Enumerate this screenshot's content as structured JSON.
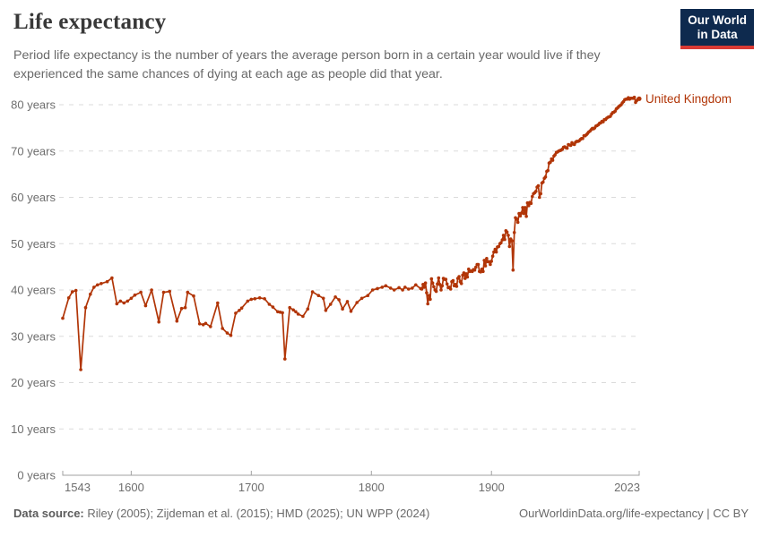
{
  "header": {
    "title": "Life expectancy",
    "subtitle": "Period life expectancy is the number of years the average person born in a certain year would live if they experienced the same chances of dying at each age as people did that year."
  },
  "logo": {
    "line1": "Our World",
    "line2": "in Data",
    "bg_color": "#0E2A4E",
    "bar_color": "#D93A34"
  },
  "chart_data": {
    "type": "line",
    "title": "Life expectancy",
    "xlabel": "",
    "ylabel": "years",
    "xlim": [
      1543,
      2023
    ],
    "ylim": [
      0,
      80
    ],
    "x_ticks": [
      1543,
      1600,
      1700,
      1800,
      1900,
      2023
    ],
    "y_ticks": [
      0,
      10,
      20,
      30,
      40,
      50,
      60,
      70,
      80
    ],
    "y_tick_suffix": " years",
    "grid": "horizontal-dashed",
    "legend_position": "end-of-line",
    "series": [
      {
        "name": "United Kingdom",
        "color": "#B13507",
        "points": [
          [
            1543,
            33.9
          ],
          [
            1548,
            38.3
          ],
          [
            1551,
            39.6
          ],
          [
            1554,
            39.9
          ],
          [
            1558,
            22.8
          ],
          [
            1562,
            36.2
          ],
          [
            1566,
            39.1
          ],
          [
            1569,
            40.6
          ],
          [
            1572,
            41.1
          ],
          [
            1575,
            41.4
          ],
          [
            1580,
            41.8
          ],
          [
            1584,
            42.6
          ],
          [
            1588,
            37.0
          ],
          [
            1591,
            37.6
          ],
          [
            1594,
            37.2
          ],
          [
            1597,
            37.6
          ],
          [
            1600,
            38.2
          ],
          [
            1603,
            38.9
          ],
          [
            1608,
            39.5
          ],
          [
            1612,
            36.6
          ],
          [
            1617,
            40.0
          ],
          [
            1623,
            33.1
          ],
          [
            1627,
            39.5
          ],
          [
            1632,
            39.7
          ],
          [
            1638,
            33.3
          ],
          [
            1642,
            36.0
          ],
          [
            1645,
            36.2
          ],
          [
            1647,
            39.5
          ],
          [
            1652,
            38.7
          ],
          [
            1657,
            32.7
          ],
          [
            1660,
            32.5
          ],
          [
            1662,
            32.8
          ],
          [
            1666,
            32.1
          ],
          [
            1672,
            37.2
          ],
          [
            1676,
            31.7
          ],
          [
            1680,
            30.7
          ],
          [
            1683,
            30.2
          ],
          [
            1687,
            35.0
          ],
          [
            1690,
            35.6
          ],
          [
            1692,
            36.1
          ],
          [
            1697,
            37.6
          ],
          [
            1700,
            38.0
          ],
          [
            1703,
            38.1
          ],
          [
            1707,
            38.3
          ],
          [
            1711,
            38.1
          ],
          [
            1715,
            36.9
          ],
          [
            1718,
            36.3
          ],
          [
            1722,
            35.3
          ],
          [
            1724,
            35.2
          ],
          [
            1726,
            35.1
          ],
          [
            1728,
            25.1
          ],
          [
            1732,
            36.2
          ],
          [
            1735,
            35.7
          ],
          [
            1737,
            35.3
          ],
          [
            1739,
            34.8
          ],
          [
            1743,
            34.3
          ],
          [
            1747,
            35.9
          ],
          [
            1751,
            39.6
          ],
          [
            1756,
            38.8
          ],
          [
            1760,
            38.2
          ],
          [
            1762,
            35.6
          ],
          [
            1766,
            36.9
          ],
          [
            1770,
            38.5
          ],
          [
            1773,
            37.9
          ],
          [
            1776,
            35.9
          ],
          [
            1780,
            37.5
          ],
          [
            1783,
            35.4
          ],
          [
            1788,
            37.3
          ],
          [
            1792,
            38.2
          ],
          [
            1797,
            38.8
          ],
          [
            1801,
            40.0
          ],
          [
            1805,
            40.3
          ],
          [
            1809,
            40.6
          ],
          [
            1812,
            40.9
          ],
          [
            1816,
            40.4
          ],
          [
            1819,
            40.0
          ],
          [
            1823,
            40.5
          ],
          [
            1826,
            40.0
          ],
          [
            1828,
            40.6
          ],
          [
            1831,
            40.2
          ],
          [
            1834,
            40.4
          ],
          [
            1837,
            41.1
          ],
          [
            1841,
            40.3
          ],
          [
            1842,
            40.2
          ],
          [
            1843,
            41.2
          ],
          [
            1844,
            40.6
          ],
          [
            1845,
            41.5
          ],
          [
            1846,
            39.4
          ],
          [
            1847,
            37.0
          ],
          [
            1848,
            38.8
          ],
          [
            1849,
            38.0
          ],
          [
            1850,
            42.4
          ],
          [
            1851,
            41.5
          ],
          [
            1852,
            40.7
          ],
          [
            1853,
            40.0
          ],
          [
            1854,
            39.7
          ],
          [
            1855,
            41.3
          ],
          [
            1856,
            42.6
          ],
          [
            1857,
            41.2
          ],
          [
            1858,
            40.0
          ],
          [
            1859,
            40.9
          ],
          [
            1860,
            42.5
          ],
          [
            1861,
            42.3
          ],
          [
            1862,
            42.3
          ],
          [
            1863,
            41.3
          ],
          [
            1864,
            40.5
          ],
          [
            1865,
            40.6
          ],
          [
            1866,
            40.2
          ],
          [
            1867,
            41.8
          ],
          [
            1868,
            42.0
          ],
          [
            1869,
            40.9
          ],
          [
            1870,
            41.2
          ],
          [
            1871,
            40.8
          ],
          [
            1872,
            42.5
          ],
          [
            1873,
            42.9
          ],
          [
            1874,
            41.8
          ],
          [
            1875,
            41.4
          ],
          [
            1876,
            43.2
          ],
          [
            1877,
            43.7
          ],
          [
            1878,
            42.5
          ],
          [
            1879,
            43.5
          ],
          [
            1880,
            42.8
          ],
          [
            1881,
            44.5
          ],
          [
            1882,
            44.0
          ],
          [
            1883,
            44.1
          ],
          [
            1884,
            44.0
          ],
          [
            1885,
            44.4
          ],
          [
            1886,
            44.3
          ],
          [
            1887,
            44.9
          ],
          [
            1888,
            45.5
          ],
          [
            1889,
            45.5
          ],
          [
            1890,
            44.0
          ],
          [
            1891,
            43.9
          ],
          [
            1892,
            44.5
          ],
          [
            1893,
            44.0
          ],
          [
            1894,
            46.4
          ],
          [
            1895,
            45.2
          ],
          [
            1896,
            46.8
          ],
          [
            1897,
            46.1
          ],
          [
            1898,
            46.1
          ],
          [
            1899,
            45.5
          ],
          [
            1900,
            46.2
          ],
          [
            1901,
            47.3
          ],
          [
            1902,
            48.2
          ],
          [
            1903,
            48.8
          ],
          [
            1904,
            48.2
          ],
          [
            1905,
            49.3
          ],
          [
            1906,
            49.4
          ],
          [
            1907,
            50.0
          ],
          [
            1908,
            50.2
          ],
          [
            1909,
            50.8
          ],
          [
            1910,
            51.8
          ],
          [
            1911,
            50.9
          ],
          [
            1912,
            52.8
          ],
          [
            1913,
            52.5
          ],
          [
            1914,
            51.8
          ],
          [
            1915,
            49.4
          ],
          [
            1916,
            51.0
          ],
          [
            1917,
            50.6
          ],
          [
            1918,
            44.3
          ],
          [
            1919,
            52.4
          ],
          [
            1920,
            55.6
          ],
          [
            1921,
            55.3
          ],
          [
            1922,
            54.6
          ],
          [
            1923,
            56.5
          ],
          [
            1924,
            56.0
          ],
          [
            1925,
            56.6
          ],
          [
            1926,
            57.8
          ],
          [
            1927,
            56.5
          ],
          [
            1928,
            57.8
          ],
          [
            1929,
            55.9
          ],
          [
            1930,
            58.8
          ],
          [
            1931,
            58.2
          ],
          [
            1932,
            58.9
          ],
          [
            1933,
            58.7
          ],
          [
            1934,
            60.2
          ],
          [
            1935,
            60.8
          ],
          [
            1936,
            61.0
          ],
          [
            1937,
            61.3
          ],
          [
            1938,
            62.2
          ],
          [
            1939,
            62.5
          ],
          [
            1940,
            60.0
          ],
          [
            1941,
            60.8
          ],
          [
            1942,
            63.1
          ],
          [
            1943,
            63.3
          ],
          [
            1944,
            64.1
          ],
          [
            1945,
            64.4
          ],
          [
            1946,
            65.6
          ],
          [
            1947,
            65.8
          ],
          [
            1948,
            67.4
          ],
          [
            1949,
            67.6
          ],
          [
            1950,
            68.3
          ],
          [
            1951,
            68.0
          ],
          [
            1952,
            68.9
          ],
          [
            1953,
            69.2
          ],
          [
            1954,
            69.7
          ],
          [
            1955,
            69.8
          ],
          [
            1956,
            70.0
          ],
          [
            1957,
            70.1
          ],
          [
            1958,
            70.2
          ],
          [
            1959,
            70.4
          ],
          [
            1960,
            70.8
          ],
          [
            1961,
            70.9
          ],
          [
            1962,
            70.7
          ],
          [
            1963,
            70.6
          ],
          [
            1964,
            71.4
          ],
          [
            1965,
            71.3
          ],
          [
            1966,
            71.2
          ],
          [
            1967,
            71.8
          ],
          [
            1968,
            71.5
          ],
          [
            1969,
            71.4
          ],
          [
            1970,
            71.9
          ],
          [
            1971,
            72.1
          ],
          [
            1972,
            72.1
          ],
          [
            1973,
            72.2
          ],
          [
            1974,
            72.5
          ],
          [
            1975,
            72.7
          ],
          [
            1976,
            72.7
          ],
          [
            1977,
            73.3
          ],
          [
            1978,
            73.3
          ],
          [
            1979,
            73.5
          ],
          [
            1980,
            73.8
          ],
          [
            1981,
            74.1
          ],
          [
            1982,
            74.3
          ],
          [
            1983,
            74.6
          ],
          [
            1984,
            74.9
          ],
          [
            1985,
            74.8
          ],
          [
            1986,
            75.0
          ],
          [
            1987,
            75.4
          ],
          [
            1988,
            75.5
          ],
          [
            1989,
            75.7
          ],
          [
            1990,
            76.0
          ],
          [
            1991,
            76.1
          ],
          [
            1992,
            76.4
          ],
          [
            1993,
            76.3
          ],
          [
            1994,
            76.8
          ],
          [
            1995,
            76.8
          ],
          [
            1996,
            77.1
          ],
          [
            1997,
            77.3
          ],
          [
            1998,
            77.4
          ],
          [
            1999,
            77.5
          ],
          [
            2000,
            78.0
          ],
          [
            2001,
            78.3
          ],
          [
            2002,
            78.4
          ],
          [
            2003,
            78.6
          ],
          [
            2004,
            79.1
          ],
          [
            2005,
            79.3
          ],
          [
            2006,
            79.6
          ],
          [
            2007,
            79.8
          ],
          [
            2008,
            80.0
          ],
          [
            2009,
            80.4
          ],
          [
            2010,
            80.7
          ],
          [
            2011,
            81.1
          ],
          [
            2012,
            81.2
          ],
          [
            2013,
            81.2
          ],
          [
            2014,
            81.5
          ],
          [
            2015,
            81.2
          ],
          [
            2016,
            81.4
          ],
          [
            2017,
            81.4
          ],
          [
            2018,
            81.4
          ],
          [
            2019,
            81.6
          ],
          [
            2020,
            80.5
          ],
          [
            2021,
            80.9
          ],
          [
            2022,
            81.2
          ],
          [
            2023,
            81.3
          ]
        ]
      }
    ],
    "entity_label": "United Kingdom",
    "colors": {
      "line": "#B13507",
      "grid": "#DBDBDB",
      "axis": "#A1A1A1",
      "tick_text": "#6E6E6E"
    }
  },
  "footer": {
    "source_label": "Data source:",
    "source_text": " Riley (2005); Zijdeman et al. (2015); HMD (2025); UN WPP (2024)",
    "right_text": "OurWorldinData.org/life-expectancy | CC BY"
  }
}
